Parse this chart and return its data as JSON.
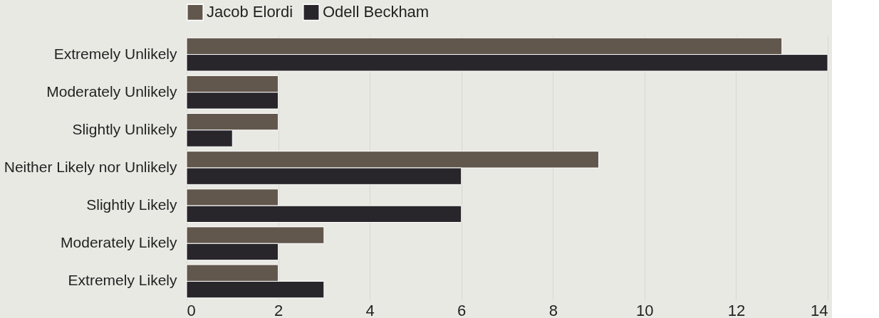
{
  "chart_data": {
    "type": "bar",
    "orientation": "horizontal",
    "categories": [
      "Extremely Unlikely",
      "Moderately Unlikely",
      "Slightly Unlikely",
      "Neither Likely nor Unlikely",
      "Slightly Likely",
      "Moderately Likely",
      "Extremely Likely"
    ],
    "series": [
      {
        "name": "Jacob Elordi",
        "color": "#62574c",
        "values": [
          13,
          2,
          2,
          9,
          2,
          3,
          2
        ]
      },
      {
        "name": "Odell Beckham",
        "color": "#28262b",
        "values": [
          14,
          2,
          1,
          6,
          6,
          2,
          3
        ]
      }
    ],
    "xlim": [
      0,
      14
    ],
    "xticks": [
      0,
      2,
      4,
      6,
      8,
      10,
      12,
      14
    ],
    "grid": "x",
    "legend": "top"
  }
}
